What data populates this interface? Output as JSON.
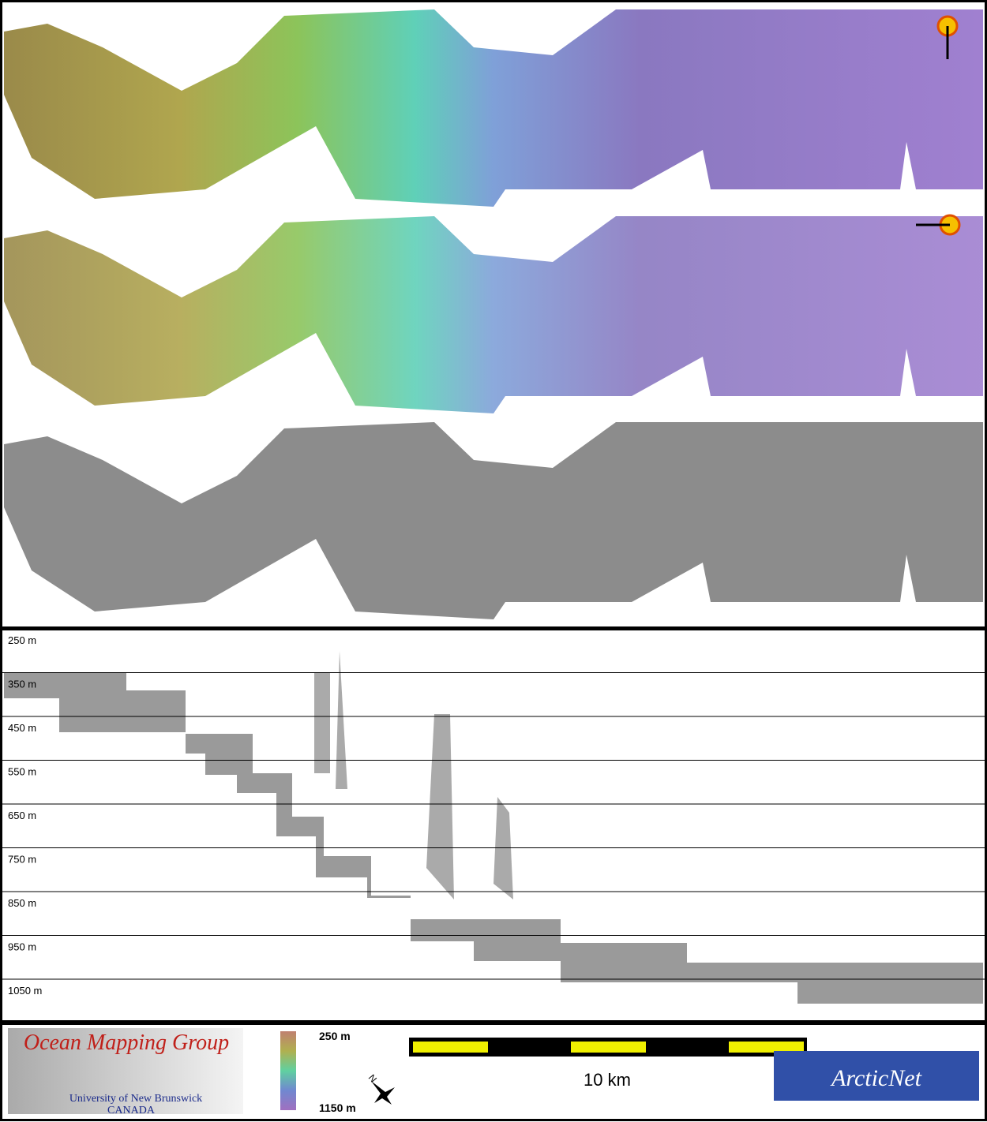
{
  "profile": {
    "depth_labels": [
      "250 m",
      "350 m",
      "450 m",
      "550 m",
      "650 m",
      "750 m",
      "850 m",
      "950 m",
      "1050 m"
    ]
  },
  "legend": {
    "logo_title": "Ocean Mapping Group",
    "logo_university": "University of New Brunswick",
    "logo_country": "CANADA",
    "colorbar_top": "250 m",
    "colorbar_bottom": "1150 m",
    "north": "N",
    "scale": "10 km",
    "partner": "ArcticNet"
  }
}
